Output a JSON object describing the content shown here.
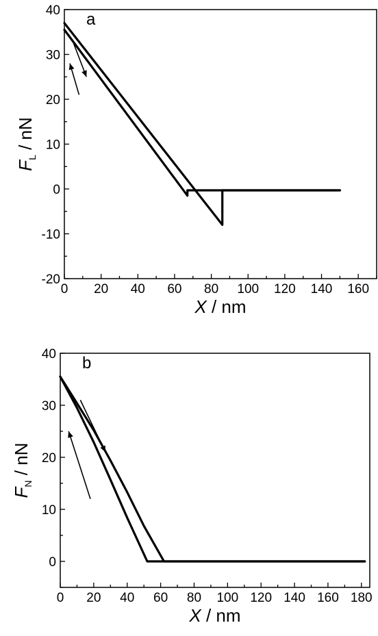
{
  "chart_data": [
    {
      "type": "line",
      "panel_label": "a",
      "xlabel": "X",
      "xlabel_unit": " / nm",
      "ylabel": "F",
      "ylabel_subscript": "L",
      "ylabel_unit": " / nN",
      "xlim": [
        0,
        170
      ],
      "ylim": [
        -20,
        40
      ],
      "xticks": [
        0,
        20,
        40,
        60,
        80,
        100,
        120,
        140,
        160
      ],
      "yticks": [
        -20,
        -10,
        0,
        10,
        20,
        30,
        40
      ],
      "grid": false,
      "series": [
        {
          "x": [
            0,
            86,
            86,
            150
          ],
          "y": [
            37,
            -8,
            -0.3,
            -0.3
          ]
        },
        {
          "x": [
            0,
            67,
            67,
            150
          ],
          "y": [
            35.5,
            -1.5,
            -0.3,
            -0.3
          ]
        }
      ],
      "annotations": [
        {
          "type": "arrow",
          "direction": "down-right",
          "from": [
            5,
            32.5
          ],
          "to": [
            12,
            25
          ]
        },
        {
          "type": "arrow",
          "direction": "up-left",
          "from": [
            8,
            21
          ],
          "to": [
            3,
            28
          ]
        }
      ]
    },
    {
      "type": "line",
      "panel_label": "b",
      "xlabel": "X",
      "xlabel_unit": " / nm",
      "ylabel": "F",
      "ylabel_subscript": "N",
      "ylabel_unit": " / nN",
      "xlim": [
        0,
        185
      ],
      "ylim": [
        -5,
        40
      ],
      "xticks": [
        0,
        20,
        40,
        60,
        80,
        100,
        120,
        140,
        160,
        180
      ],
      "yticks": [
        0,
        10,
        20,
        30,
        40
      ],
      "grid": false,
      "series": [
        {
          "x": [
            0,
            10,
            20,
            30,
            40,
            50,
            62,
            182
          ],
          "y": [
            35.5,
            30.4,
            25.2,
            19.4,
            13.3,
            6.8,
            0,
            0
          ]
        },
        {
          "x": [
            0,
            10,
            20,
            30,
            40,
            52,
            182
          ],
          "y": [
            35.5,
            29.5,
            22.9,
            15.7,
            8.4,
            0,
            0
          ]
        }
      ],
      "annotations": [
        {
          "type": "arrow",
          "direction": "down-right",
          "from": [
            12,
            31
          ],
          "to": [
            27,
            21
          ]
        },
        {
          "type": "arrow",
          "direction": "up-left",
          "from": [
            18,
            12
          ],
          "to": [
            5,
            25
          ]
        }
      ]
    }
  ]
}
